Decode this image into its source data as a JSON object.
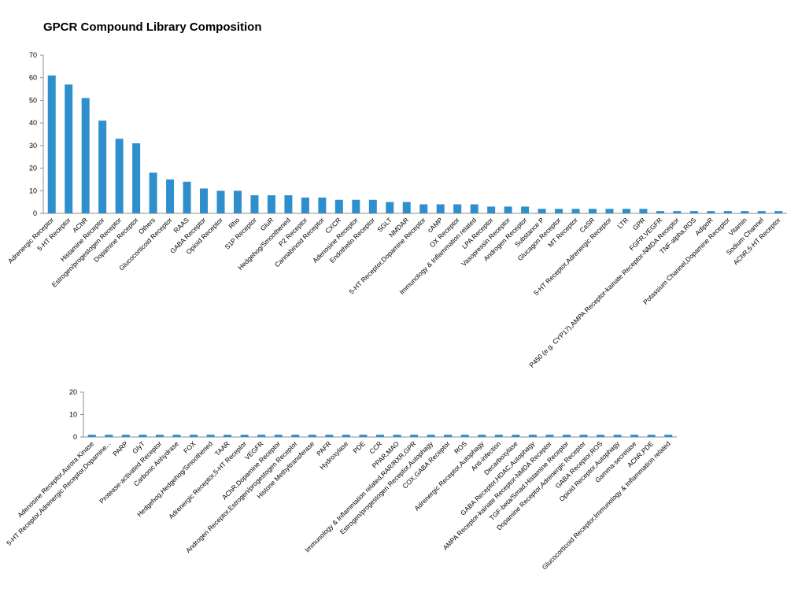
{
  "title": "GPCR Compound Library Composition",
  "colors": {
    "bar": "#2e8fcc",
    "axis": "#8c8c8c"
  },
  "chart_data": [
    {
      "type": "bar",
      "ylim": [
        0,
        70
      ],
      "yticks": [
        0,
        10,
        20,
        30,
        40,
        50,
        60,
        70
      ],
      "grid": false,
      "categories": [
        "Adrenergic Receptor",
        "5-HT Receptor",
        "AChR",
        "Histamine Receptor",
        "Estrogen/progestogen Receptor",
        "Dopamine Receptor",
        "Others",
        "Glucocorticoid Receptor",
        "RAAS",
        "GABA Receptor",
        "Opioid Receptor",
        "Rho",
        "S1P Receptor",
        "GluR",
        "Hedgehog/Smoothened",
        "P2 Receptor",
        "Cannabinoid Receptor",
        "CXCR",
        "Adenosine Receptor",
        "Endothelin Receptor",
        "SGLT",
        "NMDAR",
        "5-HT Receptor,Dopamine Receptor",
        "cAMP",
        "OX Receptor",
        "Immunology & Inflammation related",
        "LPA Receptor",
        "Vasopressin Receptor",
        "Androgen Receptor",
        "Substance P",
        "Glucagon Receptor",
        "MT Receptor",
        "CaSR",
        "5-HT Receptor,Adrenergic Receptor",
        "LTR",
        "GPR",
        "FGFR,VEGFR",
        "P450 (e.g. CYP17),AMPA Receptor-kainate Receptor-NMDA Receptor",
        "TNF-alpha,ROS",
        "AdipoR",
        "Potassium Channel,Dopamine Receptor",
        "Vitamin",
        "Sodium Channel",
        "AChR,5-HT Receptor"
      ],
      "values": [
        61,
        57,
        51,
        41,
        33,
        31,
        18,
        15,
        14,
        11,
        10,
        10,
        8,
        8,
        8,
        7,
        7,
        6,
        6,
        6,
        5,
        5,
        4,
        4,
        4,
        4,
        3,
        3,
        3,
        2,
        2,
        2,
        2,
        2,
        2,
        2,
        1,
        1,
        1,
        1,
        1,
        1,
        1,
        1
      ]
    },
    {
      "type": "bar",
      "ylim": [
        0,
        20
      ],
      "yticks": [
        0,
        10,
        20
      ],
      "grid": false,
      "categories": [
        "Adenosine Receptor,Aurora Kinase",
        "5-HT Receptor,Adrenergic Receptor,Dopamine...",
        "PARP",
        "GlyT",
        "Protease-activated Receptor",
        "Carbonic Anhydrase",
        "FOX",
        "Hedgehog,Hedgehog/Smoothened",
        "TAAR",
        "Adrenergic Receptor,5-HT Receptor",
        "VEGFR",
        "AChR,Dopamine Receptor",
        "Androgen Receptor,Estrogen/progestogen Receptor",
        "Histone Methyltransferase",
        "PAFR",
        "Hydroxylase",
        "PDE",
        "CCR",
        "PPAR,MAO",
        "Immunology & Inflammation related,RAR/RXR,GPR",
        "Estrogen/progestogen Receptor,Autophagy",
        "COX,GABA Receptor",
        "ROS",
        "Adrenergic Receptor,Autophagy",
        "Anti-infection",
        "Decarboxylase",
        "GABA Receptor,HDAC,Autophagy",
        "AMPA Receptor-kainate Receptor-NMDA Receptor",
        "TGF-beta/Smad,Histamine Receptor",
        "Dopamine Receptor,Adrenergic Receptor",
        "GABA Receptor,ROS",
        "Opioid Receptor,Autophagy",
        "Gamma-secretase",
        "AChR,PDE",
        "Glucocorticoid Receptor,Immunology & Inflammation related"
      ],
      "values": [
        1,
        1,
        1,
        1,
        1,
        1,
        1,
        1,
        1,
        1,
        1,
        1,
        1,
        1,
        1,
        1,
        1,
        1,
        1,
        1,
        1,
        1,
        1,
        1,
        1,
        1,
        1,
        1,
        1,
        1,
        1,
        1,
        1,
        1,
        1
      ]
    }
  ]
}
